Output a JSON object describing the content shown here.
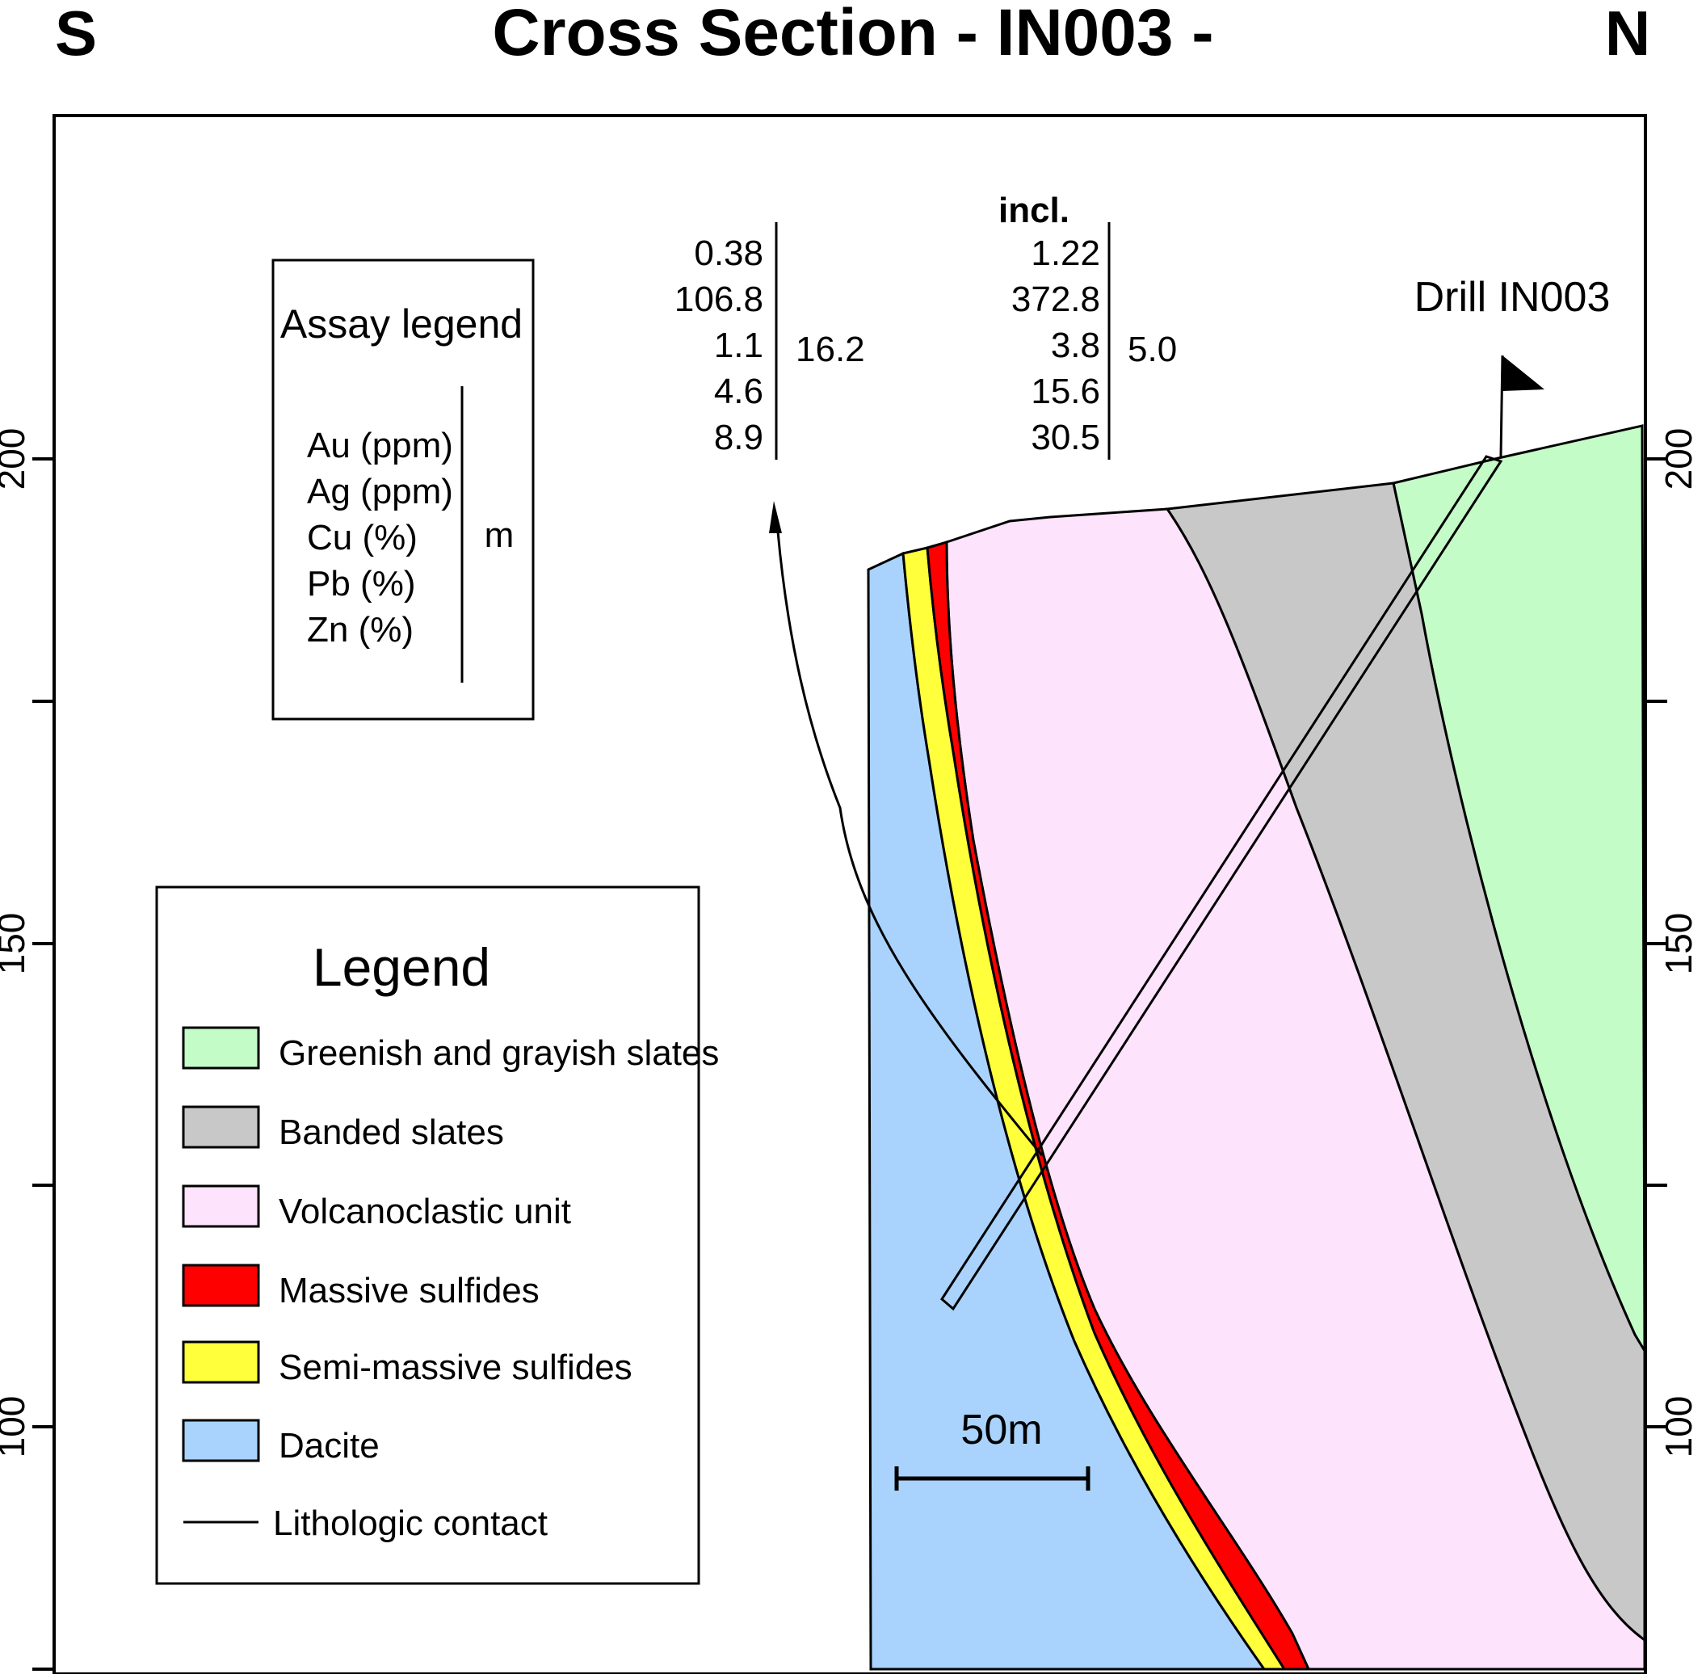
{
  "header": {
    "title": "Cross Section - IN003 -",
    "left_direction": "S",
    "right_direction": "N"
  },
  "axis": {
    "left_ticks": [
      "200",
      "150",
      "100"
    ],
    "right_ticks": [
      "200",
      "150",
      "100"
    ]
  },
  "assay_legend": {
    "title": "Assay legend",
    "items": [
      "Au (ppm)",
      "Ag (ppm)",
      "Cu (%)",
      "Pb (%)",
      "Zn (%)"
    ],
    "unit": "m"
  },
  "assay_values": {
    "main": [
      "0.38",
      "106.8",
      "1.1",
      "4.6",
      "8.9"
    ],
    "main_length": "16.2",
    "incl_label": "incl.",
    "incl": [
      "1.22",
      "372.8",
      "3.8",
      "15.6",
      "30.5"
    ],
    "incl_length": "5.0"
  },
  "drill": {
    "label": "Drill IN003"
  },
  "scale_bar": {
    "label": "50m"
  },
  "legend": {
    "title": "Legend",
    "items": [
      {
        "label": "Greenish and grayish slates",
        "color": "#c4fcc8"
      },
      {
        "label": "Banded slates",
        "color": "#c8c8c8"
      },
      {
        "label": "Volcanoclastic unit",
        "color": "#fde3fb"
      },
      {
        "label": "Massive sulfides",
        "color": "#ff0000"
      },
      {
        "label": "Semi-massive sulfides",
        "color": "#ffff3c"
      },
      {
        "label": "Dacite",
        "color": "#a9d3fd"
      }
    ],
    "contact_label": "Lithologic contact"
  }
}
